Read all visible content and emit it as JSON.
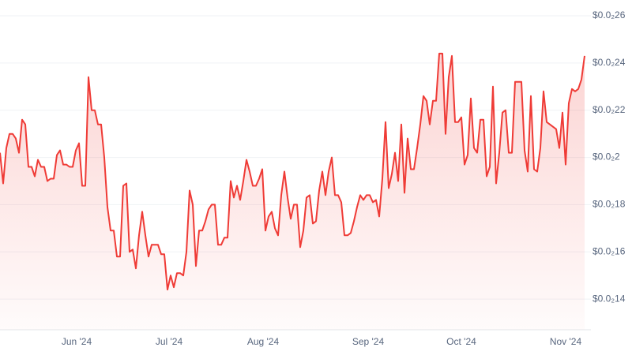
{
  "chart_data": {
    "type": "line",
    "color": "#ef3b36",
    "grid": true,
    "values": [
      0.00202,
      0.00189,
      0.00204,
      0.0021,
      0.0021,
      0.00208,
      0.00202,
      0.00216,
      0.00214,
      0.00196,
      0.00196,
      0.00192,
      0.00199,
      0.00196,
      0.00196,
      0.0019,
      0.00191,
      0.00191,
      0.00201,
      0.00203,
      0.00197,
      0.00197,
      0.00196,
      0.00196,
      0.00203,
      0.00206,
      0.00188,
      0.00188,
      0.00234,
      0.0022,
      0.0022,
      0.00214,
      0.00214,
      0.002,
      0.00179,
      0.00169,
      0.00169,
      0.00158,
      0.00158,
      0.00188,
      0.00189,
      0.0016,
      0.00161,
      0.00153,
      0.00167,
      0.00177,
      0.00167,
      0.00158,
      0.00163,
      0.00163,
      0.00163,
      0.00159,
      0.00159,
      0.00144,
      0.0015,
      0.00145,
      0.00151,
      0.00151,
      0.0015,
      0.0016,
      0.00186,
      0.0018,
      0.00154,
      0.00169,
      0.00169,
      0.00173,
      0.00178,
      0.0018,
      0.0018,
      0.00163,
      0.00163,
      0.00166,
      0.00166,
      0.0019,
      0.00183,
      0.00188,
      0.00182,
      0.0019,
      0.00199,
      0.00194,
      0.00188,
      0.00188,
      0.00191,
      0.00195,
      0.00169,
      0.00175,
      0.00177,
      0.0017,
      0.00167,
      0.00184,
      0.00194,
      0.00183,
      0.00174,
      0.0018,
      0.0018,
      0.00162,
      0.00169,
      0.00183,
      0.00184,
      0.00172,
      0.00173,
      0.00186,
      0.00194,
      0.00184,
      0.00194,
      0.002,
      0.00184,
      0.00184,
      0.00181,
      0.00167,
      0.00167,
      0.00168,
      0.00173,
      0.00179,
      0.00184,
      0.00182,
      0.00184,
      0.00184,
      0.00181,
      0.00182,
      0.00175,
      0.00191,
      0.00215,
      0.00187,
      0.00193,
      0.00202,
      0.0019,
      0.00214,
      0.00185,
      0.00208,
      0.00195,
      0.00195,
      0.00204,
      0.00214,
      0.00226,
      0.00224,
      0.00214,
      0.00224,
      0.00224,
      0.00244,
      0.00244,
      0.0021,
      0.00234,
      0.00243,
      0.00215,
      0.00215,
      0.00217,
      0.00197,
      0.00201,
      0.00225,
      0.00204,
      0.00202,
      0.00216,
      0.00216,
      0.00192,
      0.00196,
      0.0023,
      0.00189,
      0.00202,
      0.00219,
      0.0022,
      0.00202,
      0.00202,
      0.00232,
      0.00232,
      0.00232,
      0.00203,
      0.00194,
      0.00226,
      0.00195,
      0.00194,
      0.00204,
      0.00228,
      0.00215,
      0.00214,
      0.00213,
      0.00212,
      0.00204,
      0.00219,
      0.00197,
      0.00223,
      0.00229,
      0.00228,
      0.00229,
      0.00233,
      0.00243
    ],
    "xlim": [
      0,
      187
    ],
    "xticks": [
      {
        "value": 24.25,
        "label": "Jun '24"
      },
      {
        "value": 53.5,
        "label": "Jul '24"
      },
      {
        "value": 83.25,
        "label": "Aug '24"
      },
      {
        "value": 116.5,
        "label": "Sep '24"
      },
      {
        "value": 146,
        "label": "Oct '24"
      },
      {
        "value": 179,
        "label": "Nov '24"
      }
    ],
    "ylim": [
      0.00127,
      0.002667
    ],
    "yticks": [
      {
        "value": 0.0014,
        "label": "$0.0₂14"
      },
      {
        "value": 0.0016,
        "label": "$0.0₂16"
      },
      {
        "value": 0.0018,
        "label": "$0.0₂18"
      },
      {
        "value": 0.002,
        "label": "$0.0₂2"
      },
      {
        "value": 0.0022,
        "label": "$0.0₂22"
      },
      {
        "value": 0.0024,
        "label": "$0.0₂24"
      },
      {
        "value": 0.0026,
        "label": "$0.0₂26"
      }
    ]
  }
}
